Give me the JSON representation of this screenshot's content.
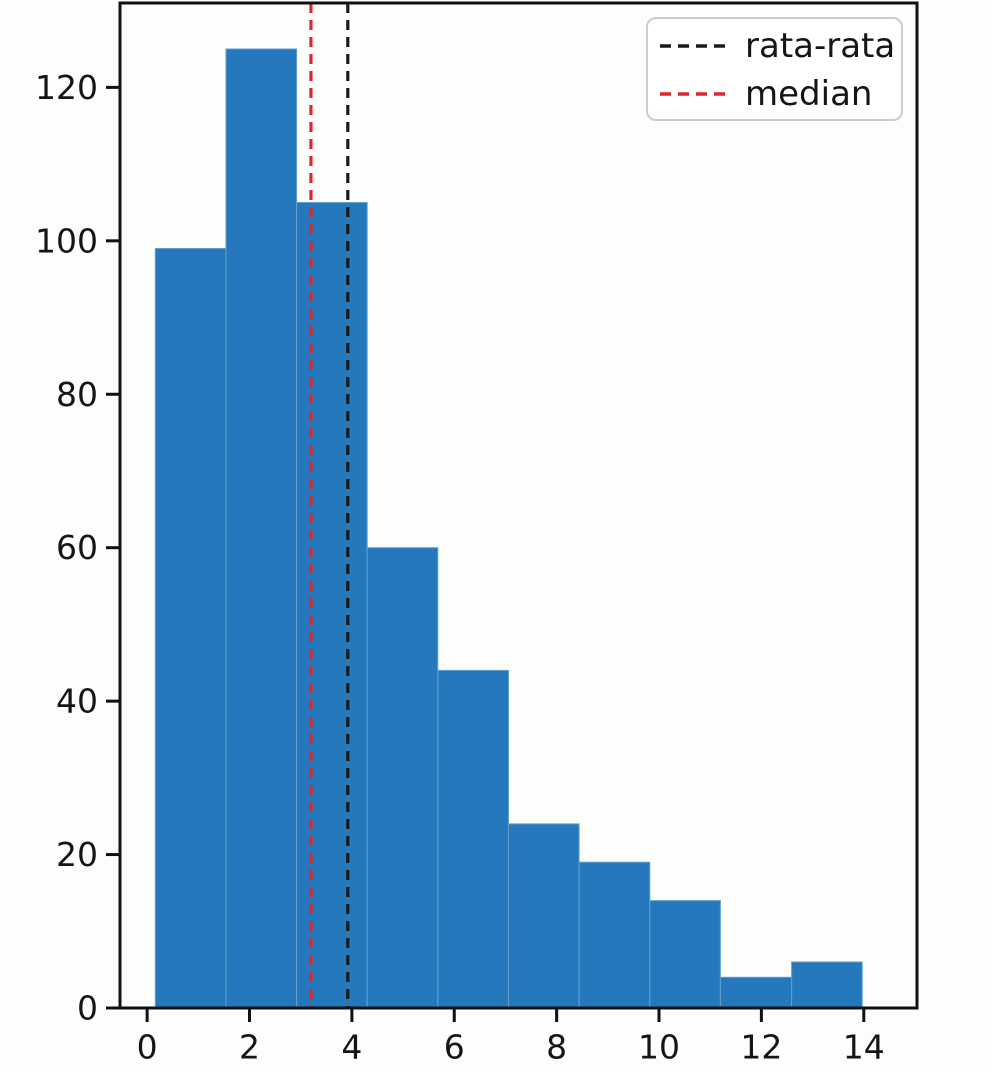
{
  "chart_data": {
    "type": "bar",
    "subtype": "histogram",
    "title": "",
    "xlabel": "",
    "ylabel": "",
    "bin_edges": [
      0.16,
      1.54,
      2.92,
      4.3,
      5.68,
      7.06,
      8.44,
      9.82,
      11.2,
      12.59,
      13.97
    ],
    "counts": [
      99,
      125,
      105,
      60,
      44,
      24,
      19,
      14,
      4,
      6
    ],
    "mean": 3.92,
    "median": 3.2,
    "xticks": [
      0,
      2,
      4,
      6,
      8,
      10,
      12,
      14
    ],
    "yticks": [
      0,
      20,
      40,
      60,
      80,
      100,
      120
    ],
    "xlim": [
      -0.53,
      15.04
    ],
    "ylim": [
      0,
      131
    ],
    "grid": false,
    "legend_position": "upper-right",
    "legend": [
      {
        "label": "rata-rata",
        "color": "#1a1a1a",
        "style": "dashed"
      },
      {
        "label": "median",
        "color": "#e0262a",
        "style": "dashed"
      }
    ],
    "colors": {
      "bar": "#2478bb",
      "bar_edge": "#5fa0cc",
      "mean_line": "#1a1a1a",
      "median_line": "#e0262a",
      "axis": "#111111",
      "legend_border": "#cccccc",
      "legend_background": "#ffffff"
    }
  }
}
